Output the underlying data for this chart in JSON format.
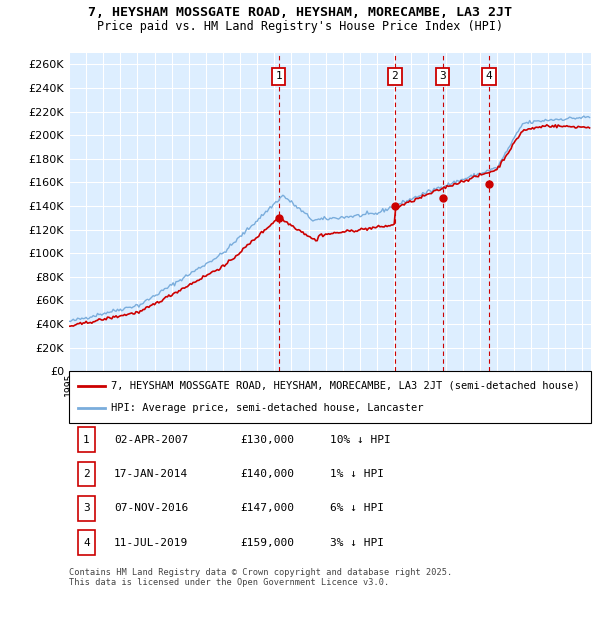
{
  "title": "7, HEYSHAM MOSSGATE ROAD, HEYSHAM, MORECAMBE, LA3 2JT",
  "subtitle": "Price paid vs. HM Land Registry's House Price Index (HPI)",
  "ylim": [
    0,
    270000
  ],
  "yticks": [
    0,
    20000,
    40000,
    60000,
    80000,
    100000,
    120000,
    140000,
    160000,
    180000,
    200000,
    220000,
    240000,
    260000
  ],
  "year_start": 1995,
  "year_end": 2025,
  "legend_line1": "7, HEYSHAM MOSSGATE ROAD, HEYSHAM, MORECAMBE, LA3 2JT (semi-detached house)",
  "legend_line2": "HPI: Average price, semi-detached house, Lancaster",
  "sale_dates": [
    "02-APR-2007",
    "17-JAN-2014",
    "07-NOV-2016",
    "11-JUL-2019"
  ],
  "sale_prices": [
    130000,
    140000,
    147000,
    159000
  ],
  "sale_hpi_diff": [
    "10% ↓ HPI",
    "1% ↓ HPI",
    "6% ↓ HPI",
    "3% ↓ HPI"
  ],
  "sale_years": [
    2007.25,
    2014.04,
    2016.84,
    2019.53
  ],
  "hpi_color": "#7aaddc",
  "price_color": "#cc0000",
  "annotation_box_color": "#cc0000",
  "bg_color": "#ddeeff",
  "grid_color": "#ffffff",
  "footer_line1": "Contains HM Land Registry data © Crown copyright and database right 2025.",
  "footer_line2": "This data is licensed under the Open Government Licence v3.0."
}
